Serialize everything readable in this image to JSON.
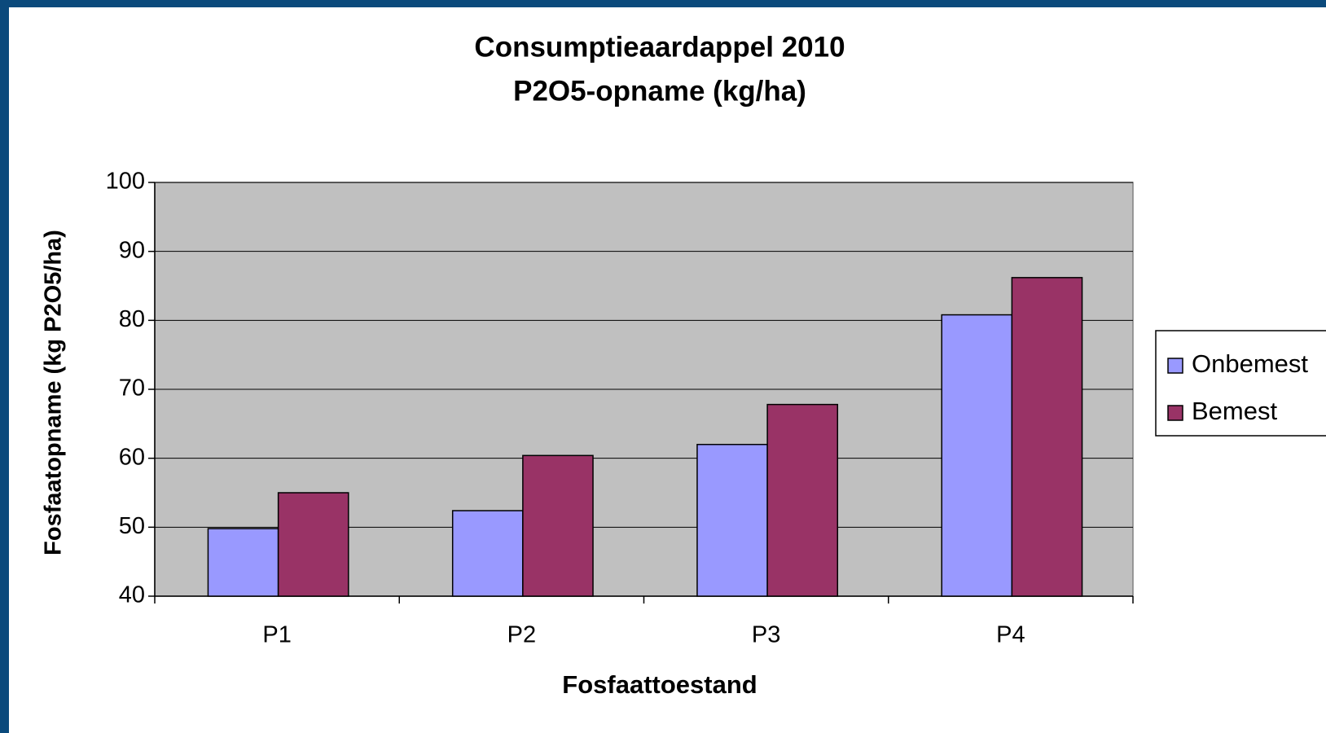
{
  "chart_data": {
    "type": "bar",
    "title": "Consumptieaardappel 2010",
    "subtitle": "P2O5-opname (kg/ha)",
    "x_label": "Fosfaattoestand",
    "y_label": "Fosfaatopname (kg P2O5/ha)",
    "categories": [
      "P1",
      "P2",
      "P3",
      "P4"
    ],
    "series": [
      {
        "name": "Onbemest",
        "color": "#9999ff",
        "values": [
          49.8,
          52.4,
          62,
          80.8
        ]
      },
      {
        "name": "Bemest",
        "color": "#993366",
        "values": [
          55,
          60.4,
          67.8,
          86.2
        ]
      }
    ],
    "ylim": [
      40,
      100
    ],
    "yticks": [
      40,
      50,
      60,
      70,
      80,
      90,
      100
    ],
    "grid": true,
    "legend": "right",
    "plot_background": "#c0c0c0"
  }
}
